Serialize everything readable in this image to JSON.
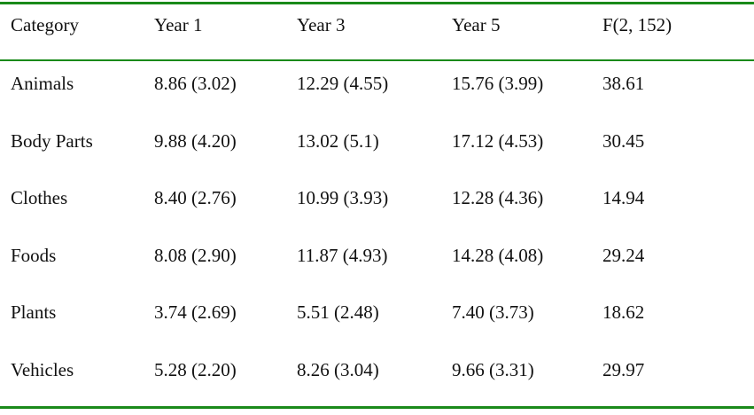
{
  "table": {
    "header": [
      "Category",
      "Year 1",
      "Year 3",
      "Year 5",
      "F(2, 152)"
    ],
    "rows": [
      [
        "Animals",
        "8.86 (3.02)",
        "12.29 (4.55)",
        "15.76 (3.99)",
        "38.61"
      ],
      [
        "Body Parts",
        "9.88 (4.20)",
        "13.02 (5.1)",
        "17.12 (4.53)",
        "30.45"
      ],
      [
        "Clothes",
        "8.40 (2.76)",
        "10.99 (3.93)",
        "12.28 (4.36)",
        "14.94"
      ],
      [
        "Foods",
        "8.08 (2.90)",
        "11.87 (4.93)",
        "14.28 (4.08)",
        "29.24"
      ],
      [
        "Plants",
        "3.74 (2.69)",
        "5.51 (2.48)",
        "7.40 (3.73)",
        "18.62"
      ],
      [
        "Vehicles",
        "5.28 (2.20)",
        "8.26 (3.04)",
        "9.66 (3.31)",
        "29.97"
      ]
    ]
  }
}
